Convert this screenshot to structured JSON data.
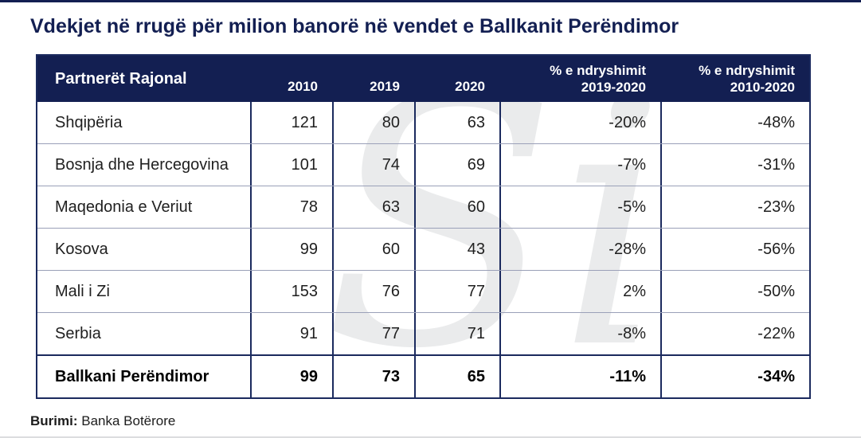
{
  "colors": {
    "navy": "#131f52",
    "table_border": "#1b2a5e",
    "row_separator": "#9aa0b8",
    "header_text": "#ffffff",
    "watermark_gray": "#eaebec"
  },
  "watermark": {
    "text": "Si"
  },
  "chart_data": {
    "type": "table",
    "title": "Vdekjet në rrugë për milion banorë në vendet e Ballkanit Perëndimor",
    "columns": [
      "Partnerët Rajonal",
      "2010",
      "2019",
      "2020",
      "% e ndryshimit 2019-2020",
      "% e ndryshimit 2010-2020"
    ],
    "header_display": {
      "country": "Partnerët Rajonal",
      "y2010": "2010",
      "y2019": "2019",
      "y2020": "2020",
      "ch1920_l1": "% e ndryshimit",
      "ch1920_l2": "2019-2020",
      "ch1020_l1": "% e ndryshimit",
      "ch1020_l2": "2010-2020"
    },
    "rows": [
      [
        "Shqipëria",
        121,
        80,
        63,
        "-20%",
        "-48%"
      ],
      [
        "Bosnja dhe Hercegovina",
        101,
        74,
        69,
        "-7%",
        "-31%"
      ],
      [
        "Maqedonia e Veriut",
        78,
        63,
        60,
        "-5%",
        "-23%"
      ],
      [
        "Kosova",
        99,
        60,
        43,
        "-28%",
        "-56%"
      ],
      [
        "Mali i Zi",
        153,
        76,
        77,
        "2%",
        "-50%"
      ],
      [
        "Serbia",
        91,
        77,
        71,
        "-8%",
        "-22%"
      ]
    ],
    "summary_row": [
      "Ballkani Perëndimor",
      99,
      73,
      65,
      "-11%",
      "-34%"
    ],
    "source_label": "Burimi:",
    "source_text": "Banka Botërore"
  }
}
